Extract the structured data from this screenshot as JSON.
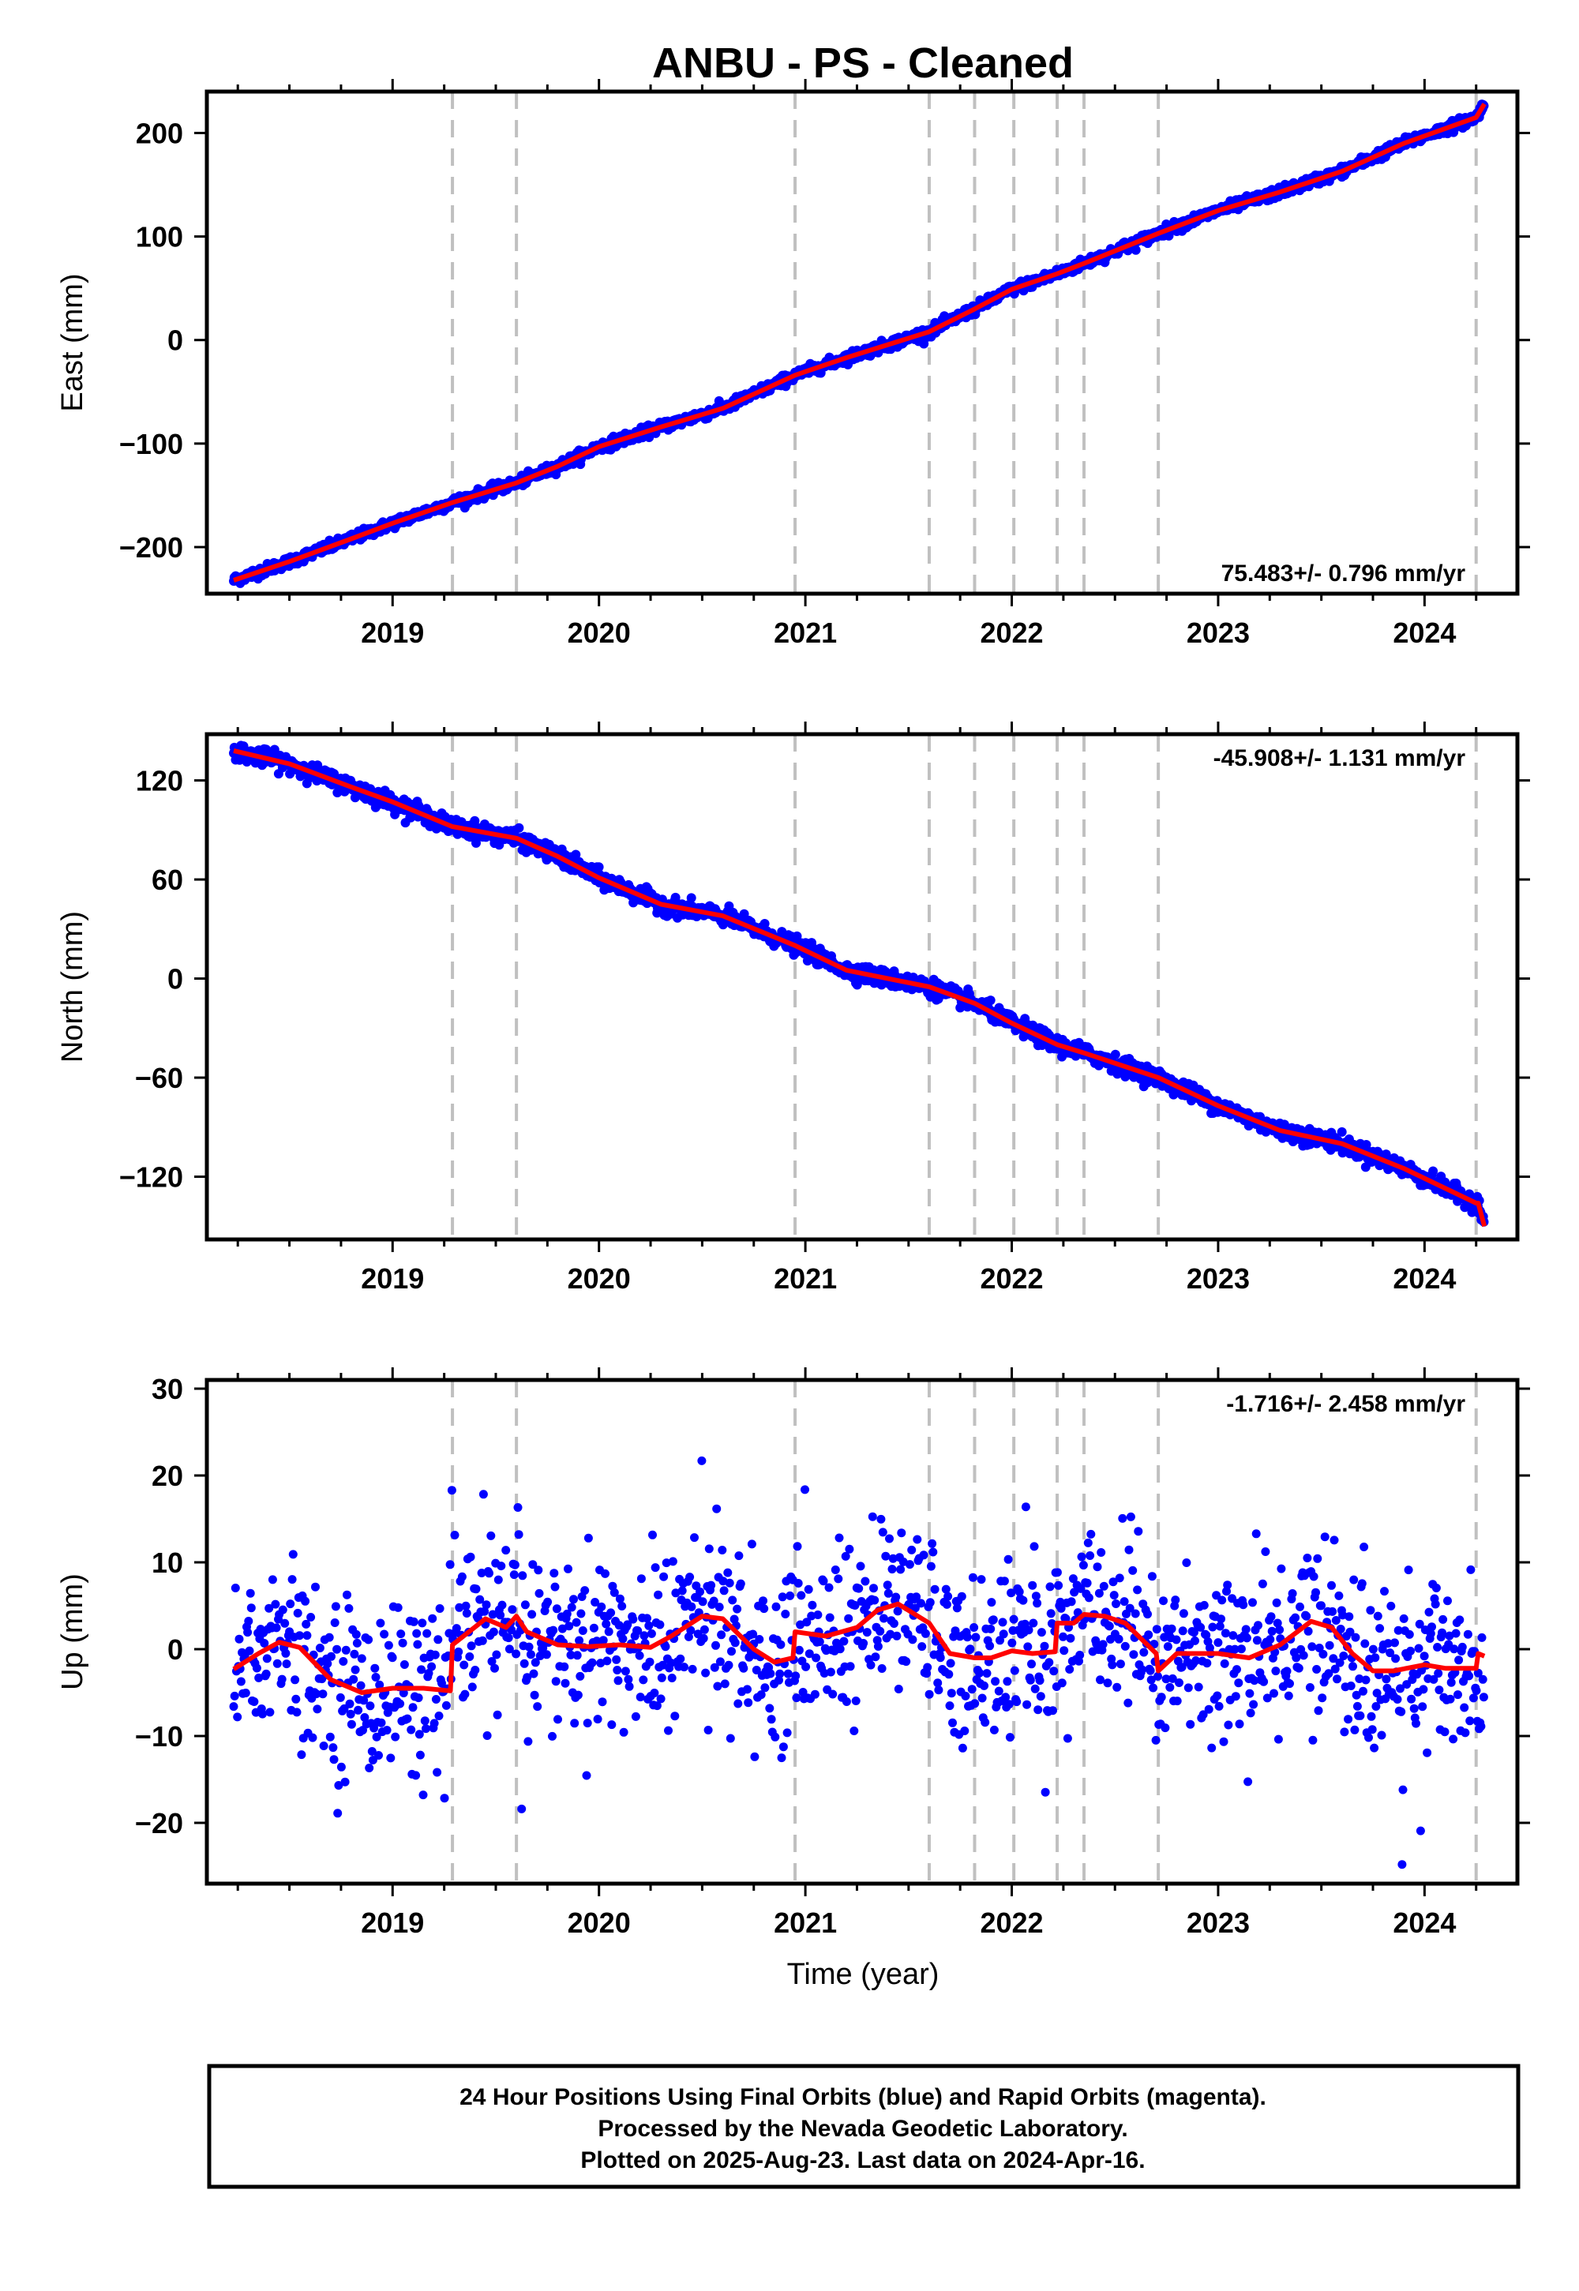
{
  "figure": {
    "title": "ANBU  - PS - Cleaned",
    "xlabel": "Time (year)",
    "footer": [
      "24 Hour Positions Using Final Orbits (blue) and Rapid Orbits (magenta).",
      "Processed by the Nevada Geodetic Laboratory.",
      "Plotted on 2025-Aug-23. Last data on 2024-Apr-16."
    ]
  },
  "colors": {
    "points": "#0000ff",
    "fit": "#ff0000",
    "breaks": "#c0c0c0",
    "frame": "#000000"
  },
  "chart_data": [
    {
      "type": "scatter",
      "ylabel": "East (mm)",
      "rate_label": "75.483+/- 0.796 mm/yr",
      "rate_position": "bottom-right",
      "xlim": [
        2018.1,
        2024.45
      ],
      "ylim": [
        -245,
        240
      ],
      "x_ticks": [
        2019,
        2020,
        2021,
        2022,
        2023,
        2024
      ],
      "y_ticks": [
        -200,
        -100,
        0,
        100,
        200
      ],
      "y_tick_labels": [
        "−200",
        "−100",
        "0",
        "100",
        "200"
      ],
      "breaks": [
        2019.29,
        2019.6,
        2020.95,
        2021.6,
        2021.82,
        2022.01,
        2022.22,
        2022.35,
        2022.71,
        2024.25
      ],
      "trend_points": [
        [
          2018.23,
          -232
        ],
        [
          2018.5,
          -214
        ],
        [
          2018.8,
          -192
        ],
        [
          2019.0,
          -177
        ],
        [
          2019.29,
          -157
        ],
        [
          2019.6,
          -138
        ],
        [
          2019.8,
          -122
        ],
        [
          2020.0,
          -103
        ],
        [
          2020.3,
          -84
        ],
        [
          2020.6,
          -66
        ],
        [
          2020.95,
          -34
        ],
        [
          2021.2,
          -17
        ],
        [
          2021.6,
          8
        ],
        [
          2021.82,
          30
        ],
        [
          2022.0,
          49
        ],
        [
          2022.22,
          64
        ],
        [
          2022.35,
          74
        ],
        [
          2022.71,
          103
        ],
        [
          2023.0,
          125
        ],
        [
          2023.3,
          143
        ],
        [
          2023.6,
          163
        ],
        [
          2023.9,
          190
        ],
        [
          2024.25,
          215
        ],
        [
          2024.29,
          228
        ]
      ],
      "scatter_sigma": 2.5
    },
    {
      "type": "scatter",
      "ylabel": "North (mm)",
      "rate_label": "-45.908+/- 1.131 mm/yr",
      "rate_position": "top-right",
      "xlim": [
        2018.1,
        2024.45
      ],
      "ylim": [
        -158,
        148
      ],
      "x_ticks": [
        2019,
        2020,
        2021,
        2022,
        2023,
        2024
      ],
      "y_ticks": [
        -120,
        -60,
        0,
        60,
        120
      ],
      "y_tick_labels": [
        "−120",
        "−60",
        "0",
        "60",
        "120"
      ],
      "breaks": [
        2019.29,
        2019.6,
        2020.95,
        2021.6,
        2021.82,
        2022.01,
        2022.22,
        2022.35,
        2022.71,
        2024.25
      ],
      "trend_points": [
        [
          2018.23,
          138
        ],
        [
          2018.5,
          130
        ],
        [
          2018.8,
          116
        ],
        [
          2019.0,
          107
        ],
        [
          2019.29,
          92
        ],
        [
          2019.6,
          85
        ],
        [
          2019.8,
          74
        ],
        [
          2020.0,
          61
        ],
        [
          2020.3,
          45
        ],
        [
          2020.6,
          38
        ],
        [
          2020.95,
          20
        ],
        [
          2021.2,
          5
        ],
        [
          2021.6,
          -5
        ],
        [
          2021.82,
          -15
        ],
        [
          2022.0,
          -27
        ],
        [
          2022.22,
          -40
        ],
        [
          2022.35,
          -45
        ],
        [
          2022.71,
          -60
        ],
        [
          2023.0,
          -77
        ],
        [
          2023.3,
          -92
        ],
        [
          2023.6,
          -100
        ],
        [
          2023.9,
          -115
        ],
        [
          2024.25,
          -136
        ],
        [
          2024.26,
          -136
        ],
        [
          2024.29,
          -150
        ]
      ],
      "scatter_sigma": 2.5
    },
    {
      "type": "scatter",
      "ylabel": "Up (mm)",
      "rate_label": "-1.716+/- 2.458 mm/yr",
      "rate_position": "top-right",
      "xlim": [
        2018.1,
        2024.45
      ],
      "ylim": [
        -27,
        31
      ],
      "x_ticks": [
        2019,
        2020,
        2021,
        2022,
        2023,
        2024
      ],
      "y_ticks": [
        -20,
        -10,
        0,
        10,
        20,
        30
      ],
      "y_tick_labels": [
        "−20",
        "−10",
        "0",
        "10",
        "20",
        "30"
      ],
      "breaks": [
        2019.29,
        2019.6,
        2020.95,
        2021.6,
        2021.82,
        2022.01,
        2022.22,
        2022.35,
        2022.71,
        2024.25
      ],
      "trend_points": [
        [
          2018.23,
          -2.3
        ],
        [
          2018.35,
          -0.5
        ],
        [
          2018.45,
          0.8
        ],
        [
          2018.55,
          0.2
        ],
        [
          2018.7,
          -3.5
        ],
        [
          2018.85,
          -5
        ],
        [
          2019.0,
          -4.5
        ],
        [
          2019.15,
          -4.5
        ],
        [
          2019.28,
          -4.8
        ],
        [
          2019.29,
          0.5
        ],
        [
          2019.45,
          3.5
        ],
        [
          2019.55,
          2.5
        ],
        [
          2019.6,
          3.8
        ],
        [
          2019.65,
          2
        ],
        [
          2019.8,
          0.5
        ],
        [
          2019.95,
          0.3
        ],
        [
          2020.1,
          0.5
        ],
        [
          2020.25,
          0.2
        ],
        [
          2020.35,
          1.5
        ],
        [
          2020.5,
          3.8
        ],
        [
          2020.6,
          3.5
        ],
        [
          2020.75,
          0
        ],
        [
          2020.85,
          -1.5
        ],
        [
          2020.94,
          -1
        ],
        [
          2020.95,
          2
        ],
        [
          2021.1,
          1.5
        ],
        [
          2021.25,
          2.5
        ],
        [
          2021.35,
          4.5
        ],
        [
          2021.45,
          5.2
        ],
        [
          2021.6,
          3
        ],
        [
          2021.7,
          -0.5
        ],
        [
          2021.82,
          -1
        ],
        [
          2021.9,
          -1
        ],
        [
          2022.0,
          -0.2
        ],
        [
          2022.1,
          -0.5
        ],
        [
          2022.21,
          -0.3
        ],
        [
          2022.22,
          3
        ],
        [
          2022.3,
          3
        ],
        [
          2022.35,
          4
        ],
        [
          2022.45,
          3.8
        ],
        [
          2022.55,
          3
        ],
        [
          2022.7,
          -0.5
        ],
        [
          2022.71,
          -2.5
        ],
        [
          2022.8,
          -0.5
        ],
        [
          2023.0,
          -0.5
        ],
        [
          2023.15,
          -1
        ],
        [
          2023.3,
          0.5
        ],
        [
          2023.45,
          3.2
        ],
        [
          2023.55,
          2.5
        ],
        [
          2023.65,
          -0.5
        ],
        [
          2023.75,
          -2.5
        ],
        [
          2023.85,
          -2.5
        ],
        [
          2024.0,
          -1.8
        ],
        [
          2024.1,
          -2.2
        ],
        [
          2024.25,
          -2.2
        ],
        [
          2024.26,
          -0.5
        ],
        [
          2024.29,
          -0.8
        ]
      ],
      "scatter_sigma": 5
    }
  ]
}
